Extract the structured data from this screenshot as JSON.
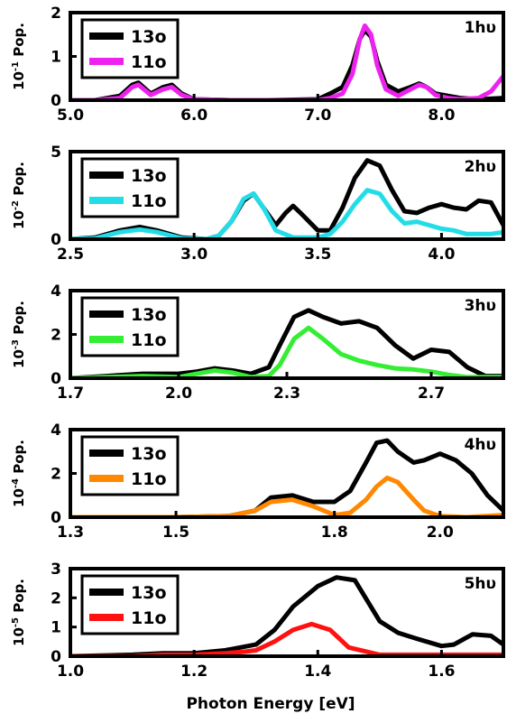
{
  "figure": {
    "xlabel": "Photon Energy [eV]"
  },
  "chart_data": [
    {
      "type": "line",
      "panel_label": "1hυ",
      "ylabel_prefix": "10",
      "ylabel_exp": "-1",
      "ylabel_suffix": " Pop.",
      "xlim": [
        5.0,
        8.5
      ],
      "ylim": [
        0,
        2
      ],
      "xticks": [
        5.0,
        6.0,
        7.0,
        8.0
      ],
      "xtick_labels": [
        "5.0",
        "6.0",
        "7.0",
        "8.0"
      ],
      "yticks": [
        0,
        1,
        2
      ],
      "ytick_labels": [
        "0",
        "1",
        "2"
      ],
      "legend": "top-left",
      "series": [
        {
          "name": "13o",
          "color": "#000000",
          "x": [
            5.0,
            5.2,
            5.4,
            5.5,
            5.55,
            5.65,
            5.75,
            5.82,
            5.9,
            6.0,
            6.3,
            6.6,
            7.0,
            7.1,
            7.2,
            7.28,
            7.34,
            7.38,
            7.43,
            7.48,
            7.55,
            7.65,
            7.75,
            7.82,
            7.88,
            7.95,
            8.05,
            8.15,
            8.3,
            8.5
          ],
          "y": [
            0.0,
            0.0,
            0.1,
            0.35,
            0.4,
            0.15,
            0.3,
            0.35,
            0.15,
            0.02,
            0.0,
            0.0,
            0.02,
            0.15,
            0.3,
            0.8,
            1.4,
            1.6,
            1.45,
            0.9,
            0.35,
            0.2,
            0.3,
            0.38,
            0.3,
            0.15,
            0.1,
            0.05,
            0.02,
            0.05
          ]
        },
        {
          "name": "11o",
          "color": "#ee22ee",
          "x": [
            5.0,
            5.2,
            5.4,
            5.5,
            5.55,
            5.65,
            5.75,
            5.82,
            5.9,
            6.0,
            6.3,
            6.6,
            7.0,
            7.1,
            7.2,
            7.28,
            7.34,
            7.38,
            7.43,
            7.48,
            7.55,
            7.65,
            7.75,
            7.82,
            7.88,
            7.95,
            8.05,
            8.15,
            8.3,
            8.4,
            8.5
          ],
          "y": [
            0.0,
            0.0,
            0.05,
            0.3,
            0.35,
            0.12,
            0.25,
            0.3,
            0.12,
            0.02,
            0.0,
            0.0,
            0.0,
            0.05,
            0.15,
            0.6,
            1.4,
            1.7,
            1.5,
            0.8,
            0.25,
            0.1,
            0.25,
            0.35,
            0.3,
            0.12,
            0.05,
            0.02,
            0.05,
            0.2,
            0.55
          ]
        }
      ]
    },
    {
      "type": "line",
      "panel_label": "2hυ",
      "ylabel_prefix": "10",
      "ylabel_exp": "-2",
      "ylabel_suffix": " Pop.",
      "xlim": [
        2.5,
        4.25
      ],
      "ylim": [
        0,
        5
      ],
      "xticks": [
        2.5,
        3.0,
        3.5,
        4.0
      ],
      "xtick_labels": [
        "2.5",
        "3.0",
        "3.5",
        "4.0"
      ],
      "yticks": [
        0,
        5
      ],
      "ytick_labels": [
        "0",
        "5"
      ],
      "legend": "top-left",
      "series": [
        {
          "name": "13o",
          "color": "#000000",
          "x": [
            2.5,
            2.6,
            2.7,
            2.78,
            2.85,
            2.95,
            3.05,
            3.1,
            3.15,
            3.2,
            3.24,
            3.28,
            3.33,
            3.37,
            3.4,
            3.43,
            3.5,
            3.55,
            3.6,
            3.65,
            3.7,
            3.75,
            3.8,
            3.85,
            3.9,
            3.95,
            4.0,
            4.05,
            4.1,
            4.15,
            4.2,
            4.25
          ],
          "y": [
            0.0,
            0.1,
            0.5,
            0.7,
            0.5,
            0.1,
            0.0,
            0.2,
            1.0,
            2.2,
            2.6,
            1.8,
            0.8,
            1.5,
            1.9,
            1.5,
            0.5,
            0.5,
            1.8,
            3.5,
            4.5,
            4.2,
            2.8,
            1.6,
            1.5,
            1.8,
            2.0,
            1.8,
            1.7,
            2.2,
            2.1,
            0.8
          ]
        },
        {
          "name": "11o",
          "color": "#22dde8",
          "x": [
            2.5,
            2.6,
            2.7,
            2.78,
            2.85,
            2.95,
            3.05,
            3.1,
            3.15,
            3.2,
            3.24,
            3.28,
            3.33,
            3.4,
            3.5,
            3.55,
            3.6,
            3.65,
            3.7,
            3.75,
            3.8,
            3.85,
            3.9,
            3.95,
            4.0,
            4.05,
            4.1,
            4.2,
            4.25
          ],
          "y": [
            0.0,
            0.05,
            0.4,
            0.55,
            0.4,
            0.05,
            0.0,
            0.2,
            1.0,
            2.3,
            2.6,
            1.8,
            0.5,
            0.1,
            0.1,
            0.3,
            1.0,
            2.0,
            2.8,
            2.6,
            1.6,
            0.9,
            1.0,
            0.8,
            0.6,
            0.5,
            0.3,
            0.3,
            0.4
          ]
        }
      ]
    },
    {
      "type": "line",
      "panel_label": "3hυ",
      "ylabel_prefix": "10",
      "ylabel_exp": "-3",
      "ylabel_suffix": " Pop.",
      "xlim": [
        1.7,
        2.9
      ],
      "ylim": [
        0,
        4
      ],
      "xticks": [
        1.7,
        2.0,
        2.3,
        2.7
      ],
      "xtick_labels": [
        "1.7",
        "2.0",
        "2.3",
        "2.7"
      ],
      "yticks": [
        0,
        2,
        4
      ],
      "ytick_labels": [
        "0",
        "2",
        "4"
      ],
      "legend": "top-left",
      "series": [
        {
          "name": "13o",
          "color": "#000000",
          "x": [
            1.7,
            1.8,
            1.9,
            2.0,
            2.05,
            2.1,
            2.15,
            2.2,
            2.25,
            2.28,
            2.32,
            2.36,
            2.4,
            2.45,
            2.5,
            2.55,
            2.6,
            2.65,
            2.7,
            2.75,
            2.8,
            2.85,
            2.9
          ],
          "y": [
            0.0,
            0.1,
            0.2,
            0.2,
            0.3,
            0.45,
            0.35,
            0.2,
            0.5,
            1.5,
            2.8,
            3.1,
            2.8,
            2.5,
            2.6,
            2.3,
            1.5,
            0.9,
            1.3,
            1.2,
            0.5,
            0.1,
            0.1
          ]
        },
        {
          "name": "11o",
          "color": "#33ee33",
          "x": [
            1.7,
            1.8,
            1.9,
            2.0,
            2.05,
            2.1,
            2.15,
            2.2,
            2.25,
            2.28,
            2.32,
            2.36,
            2.4,
            2.45,
            2.5,
            2.55,
            2.6,
            2.65,
            2.7,
            2.75,
            2.8,
            2.9
          ],
          "y": [
            0.0,
            0.05,
            0.1,
            0.05,
            0.2,
            0.35,
            0.25,
            0.05,
            0.1,
            0.6,
            1.8,
            2.3,
            1.8,
            1.1,
            0.8,
            0.6,
            0.45,
            0.4,
            0.3,
            0.15,
            0.05,
            0.05
          ]
        }
      ]
    },
    {
      "type": "line",
      "panel_label": "4hυ",
      "ylabel_prefix": "10",
      "ylabel_exp": "-4",
      "ylabel_suffix": " Pop.",
      "xlim": [
        1.3,
        2.12
      ],
      "ylim": [
        0,
        4
      ],
      "xticks": [
        1.3,
        1.5,
        1.8,
        2.0
      ],
      "xtick_labels": [
        "1.3",
        "1.5",
        "1.8",
        "2.0"
      ],
      "yticks": [
        0,
        2,
        4
      ],
      "ytick_labels": [
        "0",
        "2",
        "4"
      ],
      "legend": "top-left",
      "series": [
        {
          "name": "13o",
          "color": "#000000",
          "x": [
            1.3,
            1.4,
            1.5,
            1.6,
            1.65,
            1.68,
            1.72,
            1.76,
            1.8,
            1.83,
            1.86,
            1.88,
            1.9,
            1.92,
            1.95,
            1.97,
            2.0,
            2.03,
            2.06,
            2.09,
            2.12
          ],
          "y": [
            0.0,
            0.0,
            0.0,
            0.05,
            0.3,
            0.9,
            1.0,
            0.7,
            0.7,
            1.2,
            2.5,
            3.4,
            3.5,
            3.0,
            2.5,
            2.6,
            2.9,
            2.6,
            2.0,
            1.0,
            0.3
          ]
        },
        {
          "name": "11o",
          "color": "#ff8800",
          "x": [
            1.3,
            1.4,
            1.5,
            1.6,
            1.65,
            1.68,
            1.72,
            1.76,
            1.8,
            1.83,
            1.86,
            1.88,
            1.9,
            1.92,
            1.95,
            1.97,
            2.0,
            2.05,
            2.12
          ],
          "y": [
            0.0,
            0.0,
            0.0,
            0.05,
            0.3,
            0.7,
            0.8,
            0.5,
            0.1,
            0.2,
            0.8,
            1.4,
            1.8,
            1.6,
            0.8,
            0.3,
            0.05,
            0.0,
            0.1
          ]
        }
      ]
    },
    {
      "type": "line",
      "panel_label": "5hυ",
      "ylabel_prefix": "10",
      "ylabel_exp": "-5",
      "ylabel_suffix": " Pop.",
      "xlim": [
        1.0,
        1.7
      ],
      "ylim": [
        0,
        3
      ],
      "xticks": [
        1.0,
        1.2,
        1.4,
        1.6
      ],
      "xtick_labels": [
        "1.0",
        "1.2",
        "1.4",
        "1.6"
      ],
      "yticks": [
        0,
        1,
        2,
        3
      ],
      "ytick_labels": [
        "0",
        "1",
        "2",
        "3"
      ],
      "legend": "top-left",
      "series": [
        {
          "name": "13o",
          "color": "#000000",
          "x": [
            1.0,
            1.1,
            1.15,
            1.2,
            1.25,
            1.3,
            1.33,
            1.36,
            1.4,
            1.43,
            1.46,
            1.5,
            1.53,
            1.56,
            1.6,
            1.62,
            1.65,
            1.68,
            1.7
          ],
          "y": [
            0.0,
            0.05,
            0.1,
            0.1,
            0.2,
            0.4,
            0.9,
            1.7,
            2.4,
            2.7,
            2.6,
            1.2,
            0.8,
            0.6,
            0.35,
            0.4,
            0.75,
            0.7,
            0.4
          ]
        },
        {
          "name": "11o",
          "color": "#ff1111",
          "x": [
            1.0,
            1.1,
            1.15,
            1.2,
            1.25,
            1.28,
            1.3,
            1.33,
            1.36,
            1.39,
            1.42,
            1.45,
            1.5,
            1.55,
            1.6,
            1.65,
            1.7
          ],
          "y": [
            0.0,
            0.0,
            0.05,
            0.05,
            0.1,
            0.15,
            0.2,
            0.5,
            0.9,
            1.1,
            0.9,
            0.3,
            0.05,
            0.05,
            0.05,
            0.05,
            0.05
          ]
        }
      ]
    }
  ]
}
